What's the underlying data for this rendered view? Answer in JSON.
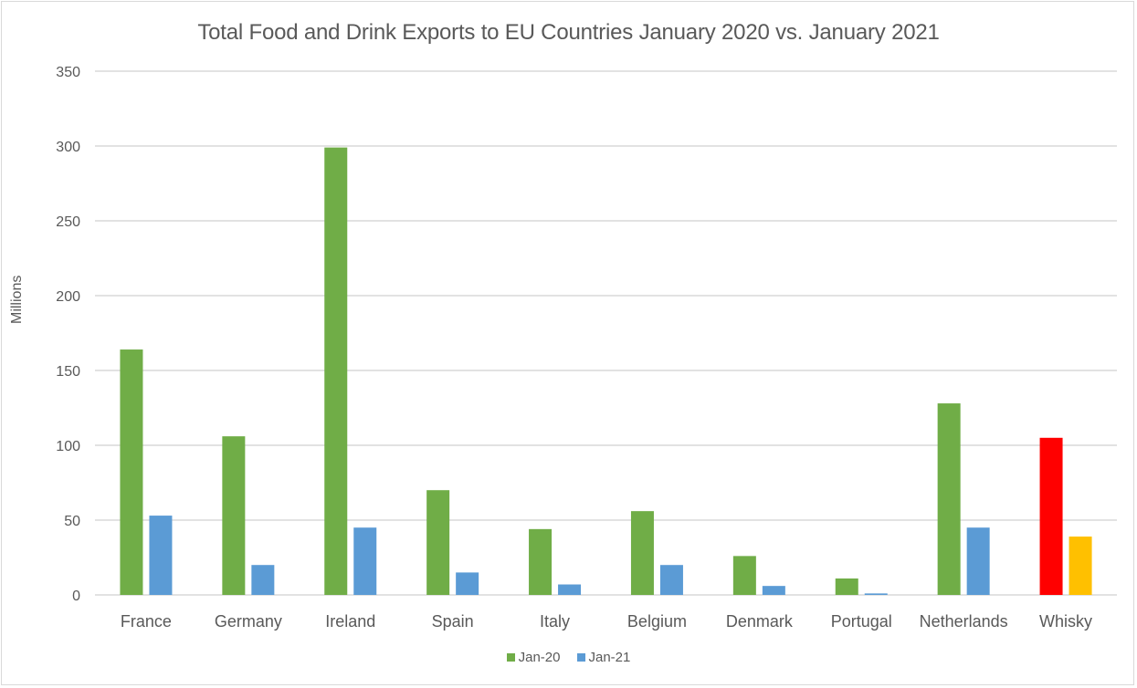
{
  "chart_data": {
    "type": "bar",
    "title": "Total Food and Drink Exports to EU Countries January 2020 vs. January 2021",
    "xlabel": "",
    "ylabel": "Millions",
    "ylim": [
      0,
      350
    ],
    "yticks": [
      0,
      50,
      100,
      150,
      200,
      250,
      300,
      350
    ],
    "grid": true,
    "legend_position": "bottom",
    "categories": [
      "France",
      "Germany",
      "Ireland",
      "Spain",
      "Italy",
      "Belgium",
      "Denmark",
      "Portugal",
      "Netherlands",
      "Whisky"
    ],
    "series": [
      {
        "name": "Jan-20",
        "color": "#70ad47",
        "values": [
          164,
          106,
          299,
          70,
          44,
          56,
          26,
          11,
          128,
          105
        ],
        "point_colors": {
          "Whisky": "#ff0000"
        }
      },
      {
        "name": "Jan-21",
        "color": "#5b9bd5",
        "values": [
          53,
          20,
          45,
          15,
          7,
          20,
          6,
          1,
          45,
          39
        ],
        "point_colors": {
          "Whisky": "#ffc000"
        }
      }
    ]
  },
  "colors": {
    "gridline": "#d9d9d9",
    "text": "#595959"
  }
}
